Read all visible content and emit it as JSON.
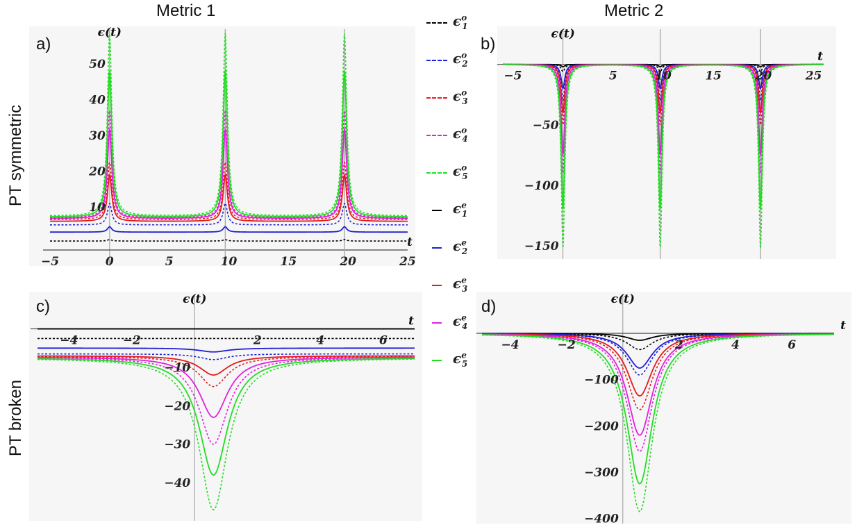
{
  "headers": {
    "col1": "Metric 1",
    "col2": "Metric 2",
    "row1": "PT symmetric",
    "row2": "PT broken"
  },
  "panel_labels": [
    "a)",
    "b)",
    "c)",
    "d)"
  ],
  "legend": [
    {
      "base": "ϵ",
      "sub": "1",
      "sup": "o",
      "color": "#000000",
      "dash": true
    },
    {
      "base": "ϵ",
      "sub": "2",
      "sup": "o",
      "color": "#1f1fd6",
      "dash": true
    },
    {
      "base": "ϵ",
      "sub": "3",
      "sup": "o",
      "color": "#e41a1c",
      "dash": true
    },
    {
      "base": "ϵ",
      "sub": "4",
      "sup": "o",
      "color": "#e020e0",
      "dash": true
    },
    {
      "base": "ϵ",
      "sub": "5",
      "sup": "o",
      "color": "#22dd22",
      "dash": true
    },
    {
      "base": "ϵ",
      "sub": "1",
      "sup": "e",
      "color": "#000000",
      "dash": false
    },
    {
      "base": "ϵ",
      "sub": "2",
      "sup": "e",
      "color": "#1f1fd6",
      "dash": false
    },
    {
      "base": "ϵ",
      "sub": "3",
      "sup": "e",
      "color": "#e41a1c",
      "dash": false
    },
    {
      "base": "ϵ",
      "sub": "4",
      "sup": "e",
      "color": "#e020e0",
      "dash": false
    },
    {
      "base": "ϵ",
      "sub": "5",
      "sup": "e",
      "color": "#22dd22",
      "dash": false
    }
  ],
  "chart_data": [
    {
      "id": "a",
      "type": "line",
      "ylabel": "ϵ(t)",
      "xlabel": "t",
      "xlim": [
        -5,
        25
      ],
      "ylim": [
        -2,
        55
      ],
      "xticks": [
        "-5",
        "0",
        "5",
        "10",
        "15",
        "20",
        "25"
      ],
      "yticks": [
        "10",
        "20",
        "30",
        "40",
        "50"
      ],
      "peaks_x": [
        0,
        9.7,
        19.7
      ],
      "series": [
        {
          "level": 0.5,
          "peak": 0.4,
          "color": "#000000",
          "dash": true
        },
        {
          "level": 3.0,
          "peak": 1.5,
          "color": "#1f1fd6",
          "dash": false
        },
        {
          "level": 5.0,
          "peak": 6.0,
          "color": "#1f1fd6",
          "dash": true
        },
        {
          "level": 6.0,
          "peak": 13.0,
          "color": "#e41a1c",
          "dash": false
        },
        {
          "level": 6.5,
          "peak": 16.0,
          "color": "#e41a1c",
          "dash": true
        },
        {
          "level": 6.8,
          "peak": 25.0,
          "color": "#e020e0",
          "dash": false
        },
        {
          "level": 7.0,
          "peak": 30.0,
          "color": "#e020e0",
          "dash": true
        },
        {
          "level": 7.2,
          "peak": 41.0,
          "color": "#22dd22",
          "dash": false
        },
        {
          "level": 7.5,
          "peak": 51.0,
          "color": "#22dd22",
          "dash": true
        }
      ]
    },
    {
      "id": "b",
      "type": "line",
      "ylabel": "ϵ(t)",
      "xlabel": "t",
      "xlim": [
        -6,
        26
      ],
      "ylim": [
        -158,
        5
      ],
      "xticks": [
        "-5",
        "5",
        "10",
        "15",
        "20",
        "25"
      ],
      "yticks": [
        "-50",
        "-100",
        "-150"
      ],
      "peaks_x": [
        0,
        9.7,
        19.7
      ],
      "series": [
        {
          "level": 0,
          "peak": -2,
          "color": "#000000",
          "dash": false
        },
        {
          "level": 0,
          "peak": -6,
          "color": "#000000",
          "dash": true
        },
        {
          "level": 0,
          "peak": -20,
          "color": "#1f1fd6",
          "dash": false
        },
        {
          "level": 0,
          "peak": -30,
          "color": "#1f1fd6",
          "dash": true
        },
        {
          "level": 0,
          "peak": -40,
          "color": "#e41a1c",
          "dash": false
        },
        {
          "level": 0,
          "peak": -50,
          "color": "#e41a1c",
          "dash": true
        },
        {
          "level": 0,
          "peak": -75,
          "color": "#e020e0",
          "dash": false
        },
        {
          "level": 0,
          "peak": -90,
          "color": "#e020e0",
          "dash": true
        },
        {
          "level": 0,
          "peak": -120,
          "color": "#22dd22",
          "dash": false
        },
        {
          "level": 0,
          "peak": -152,
          "color": "#22dd22",
          "dash": true
        }
      ]
    },
    {
      "id": "c",
      "type": "line",
      "ylabel": "ϵ(t)",
      "xlabel": "t",
      "xlim": [
        -5,
        7
      ],
      "ylim": [
        -49,
        1
      ],
      "xticks": [
        "-4",
        "-2",
        "2",
        "4",
        "6"
      ],
      "yticks": [
        "-10",
        "-20",
        "-30",
        "-40"
      ],
      "center_x": 0.6,
      "series": [
        {
          "level": 0,
          "peak": 0,
          "color": "#000000",
          "dash": false
        },
        {
          "level": -2.5,
          "peak": -2.5,
          "color": "#000000",
          "dash": true
        },
        {
          "level": -5.0,
          "peak": -6.0,
          "color": "#1f1fd6",
          "dash": false
        },
        {
          "level": -6.5,
          "peak": -8.0,
          "color": "#1f1fd6",
          "dash": true
        },
        {
          "level": -7.0,
          "peak": -12.0,
          "color": "#e41a1c",
          "dash": false
        },
        {
          "level": -7.2,
          "peak": -15.0,
          "color": "#e41a1c",
          "dash": true
        },
        {
          "level": -7.3,
          "peak": -23.0,
          "color": "#e020e0",
          "dash": false
        },
        {
          "level": -7.4,
          "peak": -30.0,
          "color": "#e020e0",
          "dash": true
        },
        {
          "level": -7.5,
          "peak": -38.0,
          "color": "#22dd22",
          "dash": false
        },
        {
          "level": -7.6,
          "peak": -47.0,
          "color": "#22dd22",
          "dash": true
        }
      ]
    },
    {
      "id": "d",
      "type": "line",
      "ylabel": "ϵ(t)",
      "xlabel": "t",
      "xlim": [
        -5,
        7.5
      ],
      "ylim": [
        -405,
        15
      ],
      "xticks": [
        "-4",
        "-2",
        "2",
        "4",
        "6"
      ],
      "yticks": [
        "-100",
        "-200",
        "-300",
        "-400"
      ],
      "center_x": 0.6,
      "series": [
        {
          "level": 0,
          "peak": -15,
          "color": "#000000",
          "dash": false
        },
        {
          "level": 0,
          "peak": -35,
          "color": "#000000",
          "dash": true
        },
        {
          "level": 0,
          "peak": -75,
          "color": "#1f1fd6",
          "dash": false
        },
        {
          "level": 0,
          "peak": -90,
          "color": "#1f1fd6",
          "dash": true
        },
        {
          "level": 0,
          "peak": -135,
          "color": "#e41a1c",
          "dash": false
        },
        {
          "level": 0,
          "peak": -165,
          "color": "#e41a1c",
          "dash": true
        },
        {
          "level": 0,
          "peak": -220,
          "color": "#e020e0",
          "dash": false
        },
        {
          "level": 0,
          "peak": -255,
          "color": "#e020e0",
          "dash": true
        },
        {
          "level": 0,
          "peak": -325,
          "color": "#22dd22",
          "dash": false
        },
        {
          "level": 0,
          "peak": -385,
          "color": "#22dd22",
          "dash": true
        }
      ]
    }
  ]
}
